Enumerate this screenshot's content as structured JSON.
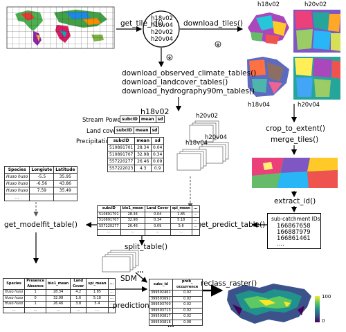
{
  "tile_ids": [
    "h18v02",
    "h18v04",
    "h20v02",
    "h20v04"
  ],
  "tile_labels": {
    "tl": "h18v02",
    "tr": "h20v02",
    "bl": "h18v04",
    "br": "h20v04"
  },
  "functions": {
    "get_tile_id": "get_tile_id()",
    "download_tiles": "download_tiles()",
    "dl_climate": "download_observed_climate_tables()",
    "dl_landcover": "download_landcover_tables()",
    "dl_hydro": "download_hydrography90m_tables()",
    "crop": "crop_to_extent()",
    "merge": "merge_tiles()",
    "extract": "extract_id()",
    "get_predict": "get_predict_table()",
    "get_modelfit": "get_modelfit_table()",
    "split": "split_table()",
    "reclass": "reclass_raster()"
  },
  "sdm_label": {
    "line1": "SDM",
    "line2": "prediction"
  },
  "stacked_tables": {
    "main_title": "h18v02",
    "other_titles": [
      "h20v02",
      "h18v04",
      "h20v04"
    ],
    "row_labels": [
      "Stream Power Index",
      "Land cover",
      "Precipitation"
    ],
    "headers": [
      "subcID",
      "mean",
      "sd"
    ],
    "rows": [
      [
        "510891701",
        "28.34",
        "0.04"
      ],
      [
        "510891707",
        "32.98",
        "0.34"
      ],
      [
        "557220277",
        "26.46",
        "0.09"
      ],
      [
        "557222023",
        "4.3",
        "0.9"
      ]
    ]
  },
  "species_table": {
    "headers": [
      "Species",
      "Longiute",
      "Latitude"
    ],
    "rows": [
      [
        "Huso huso",
        "-5.5",
        "35.95"
      ],
      [
        "Huso huso",
        "-6.56",
        "43.86"
      ],
      [
        "Huso huso",
        "7.59",
        "35.49"
      ],
      [
        "...",
        "",
        ""
      ]
    ]
  },
  "predict_table": {
    "headers": [
      "subcID",
      "bio1_mean",
      "Land Cover",
      "spi_mean",
      "..."
    ],
    "rows": [
      [
        "510891701",
        "28.34",
        "0.04",
        "1.85",
        "..."
      ],
      [
        "510891707",
        "32.98",
        "0.34",
        "5.18",
        "..."
      ],
      [
        "557220277",
        "26.46",
        "0.09",
        "5.6",
        "..."
      ],
      [
        "...",
        "...",
        "...",
        "...",
        ""
      ]
    ]
  },
  "subcatchment": {
    "title": "sub-catchment IDs",
    "ids": [
      "166867658",
      "166887979",
      "166861461",
      "...."
    ]
  },
  "modelfit_table": {
    "headers": [
      "Species",
      "Presence Absence",
      "bio1_mean",
      "Land Cover",
      "spi_mean",
      "..."
    ],
    "rows": [
      [
        "Huso huso",
        "1",
        "28.34",
        "4.2",
        "1.85",
        "..."
      ],
      [
        "Huso huso",
        "0",
        "32.98",
        "1.6",
        "5.18",
        "..."
      ],
      [
        "Huso huso",
        "1",
        "26.46",
        "3.8",
        "5.4",
        "..."
      ],
      [
        "...",
        "...",
        "...",
        "...",
        "...",
        ""
      ]
    ]
  },
  "prob_table": {
    "headers": [
      "subc_id",
      "prob_ occurrence"
    ],
    "rows": [
      [
        "399592461",
        "0.02"
      ],
      [
        "399593692",
        "0.02"
      ],
      [
        "399593700",
        "0.02"
      ],
      [
        "399593713",
        "0.02"
      ],
      [
        "399593817",
        "0.02"
      ],
      [
        "399593818",
        "0.08"
      ]
    ]
  },
  "ellipsis": "...",
  "colorbar": {
    "max": "100",
    "min": "0"
  },
  "colors": {
    "arrow": "#000000",
    "dashed": "#555555"
  }
}
